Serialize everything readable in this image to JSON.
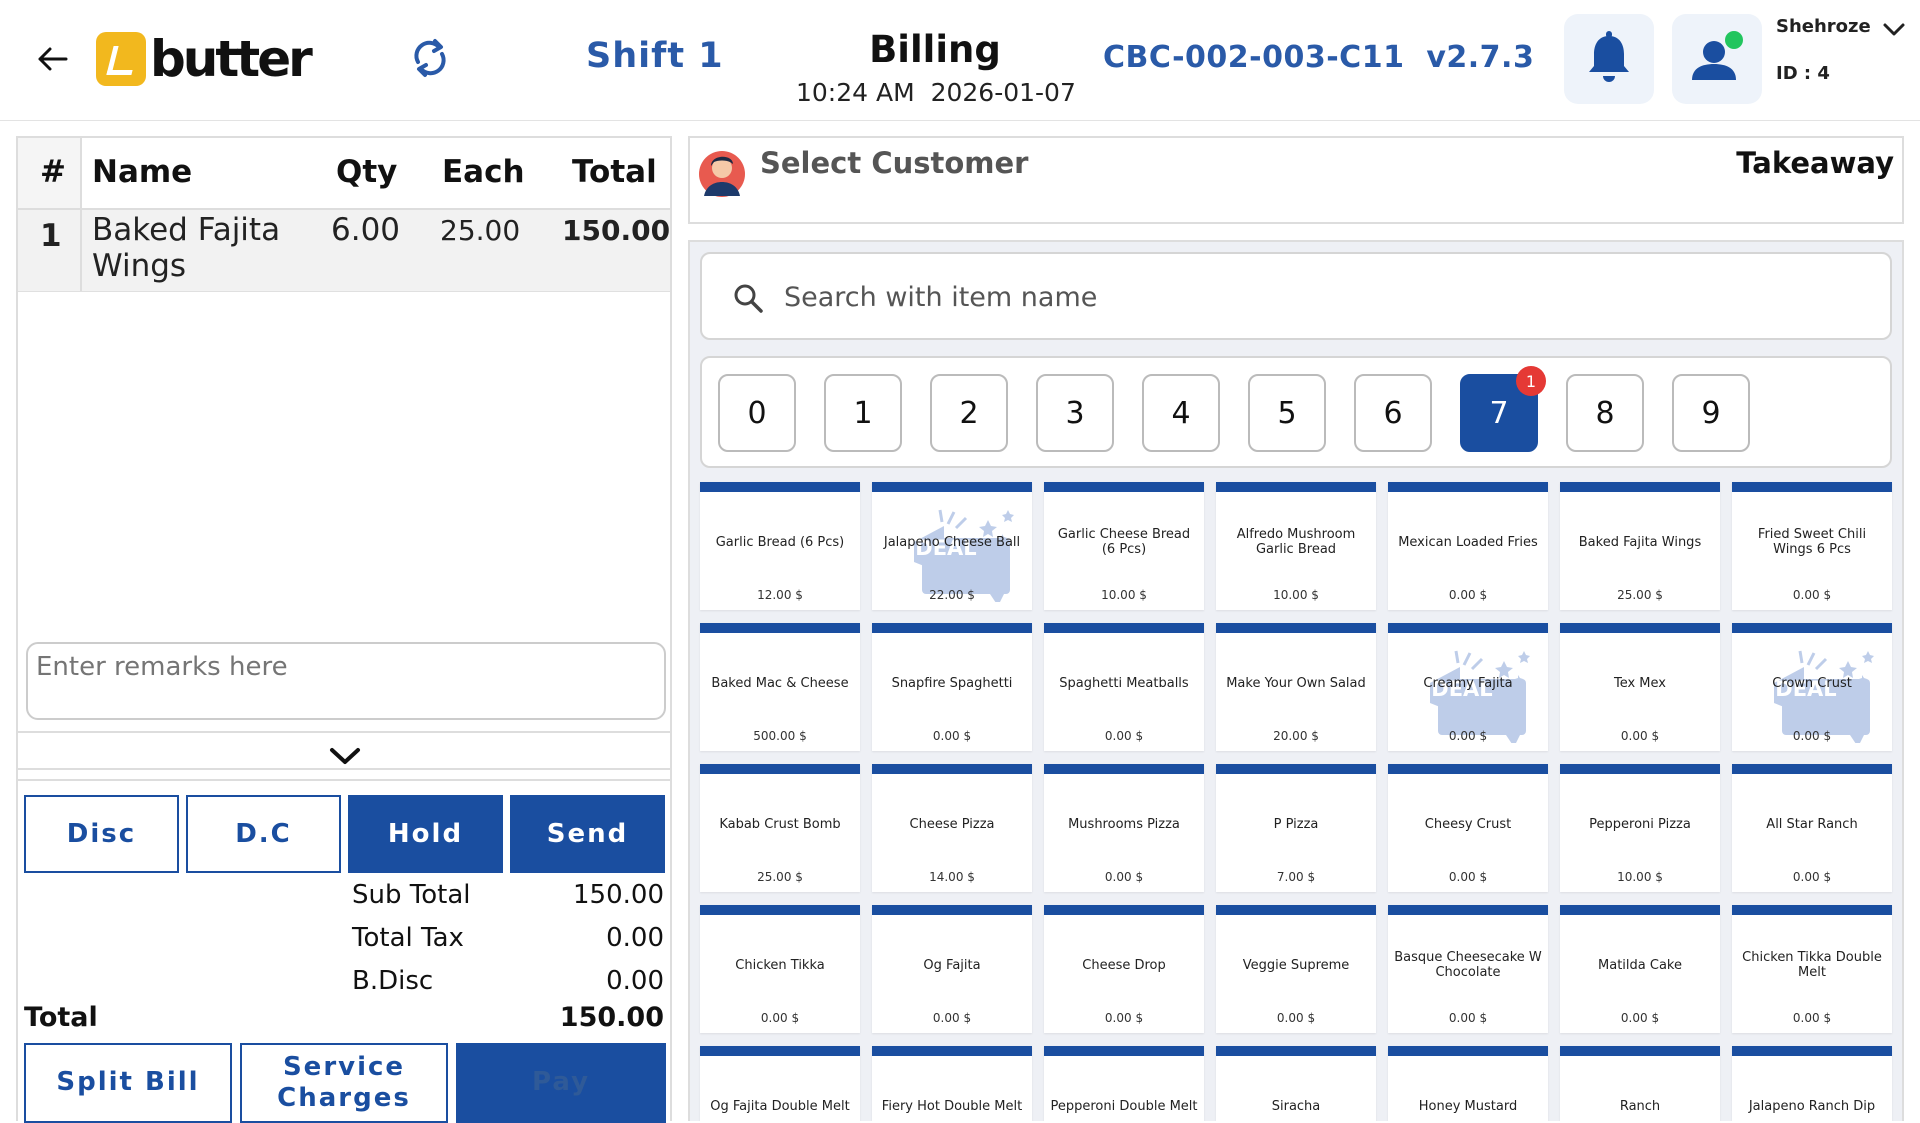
{
  "header": {
    "brand": "butter",
    "shift": "Shift 1",
    "title": "Billing",
    "time": "10:24 AM",
    "date": "2026-01-07",
    "device_id": "CBC-002-003-C11",
    "version": "v2.7.3",
    "user_name": "Shehroze",
    "user_id": "ID : 4",
    "accent_color": "#1a4ea0",
    "online_color": "#22c55e"
  },
  "order": {
    "columns": [
      "#",
      "Name",
      "Qty",
      "Each",
      "Total"
    ],
    "rows": [
      {
        "num": "1",
        "name": "Baked Fajita Wings",
        "qty": "6.00",
        "each": "25.00",
        "total": "150.00"
      }
    ],
    "remarks_placeholder": "Enter remarks here",
    "buttons": {
      "disc": "Disc",
      "dc": "D.C",
      "hold": "Hold",
      "send": "Send"
    },
    "summary": [
      {
        "label": "Sub Total",
        "value": "150.00"
      },
      {
        "label": "Total Tax",
        "value": "0.00"
      },
      {
        "label": "B.Disc",
        "value": "0.00"
      }
    ],
    "total_label": "Total",
    "total_value": "150.00",
    "bottom_buttons": {
      "split": "Split Bill",
      "service": "Service Charges",
      "pay": "Pay"
    }
  },
  "customer": {
    "label": "Select Customer",
    "order_type": "Takeaway"
  },
  "search": {
    "placeholder": "Search with item name"
  },
  "categories": {
    "items": [
      "0",
      "1",
      "2",
      "3",
      "4",
      "5",
      "6",
      "7",
      "8",
      "9"
    ],
    "selected": "7",
    "badge": "1"
  },
  "deal_label": "DEAL",
  "items": [
    {
      "name": "Garlic Bread (6 Pcs)",
      "price": "12.00 $",
      "deal": false
    },
    {
      "name": "Jalapeno Cheese Ball",
      "price": "22.00 $",
      "deal": true
    },
    {
      "name": "Garlic Cheese Bread (6 Pcs)",
      "price": "10.00 $",
      "deal": false
    },
    {
      "name": "Alfredo Mushroom Garlic Bread",
      "price": "10.00 $",
      "deal": false
    },
    {
      "name": "Mexican Loaded Fries",
      "price": "0.00 $",
      "deal": false
    },
    {
      "name": "Baked Fajita Wings",
      "price": "25.00 $",
      "deal": false
    },
    {
      "name": "Fried Sweet Chili Wings 6 Pcs",
      "price": "0.00 $",
      "deal": false
    },
    {
      "name": "Baked Mac & Cheese",
      "price": "500.00 $",
      "deal": false
    },
    {
      "name": "Snapfire Spaghetti",
      "price": "0.00 $",
      "deal": false
    },
    {
      "name": "Spaghetti Meatballs",
      "price": "0.00 $",
      "deal": false
    },
    {
      "name": "Make Your Own Salad",
      "price": "20.00 $",
      "deal": false
    },
    {
      "name": "Creamy Fajita",
      "price": "0.00 $",
      "deal": true
    },
    {
      "name": "Tex Mex",
      "price": "0.00 $",
      "deal": false
    },
    {
      "name": "Crown Crust",
      "price": "0.00 $",
      "deal": true
    },
    {
      "name": "Kabab Crust Bomb",
      "price": "25.00 $",
      "deal": false
    },
    {
      "name": "Cheese Pizza",
      "price": "14.00 $",
      "deal": false
    },
    {
      "name": "Mushrooms Pizza",
      "price": "0.00 $",
      "deal": false
    },
    {
      "name": "P Pizza",
      "price": "7.00 $",
      "deal": false
    },
    {
      "name": "Cheesy Crust",
      "price": "0.00 $",
      "deal": false
    },
    {
      "name": "Pepperoni Pizza",
      "price": "10.00 $",
      "deal": false
    },
    {
      "name": "All Star Ranch",
      "price": "0.00 $",
      "deal": false
    },
    {
      "name": "Chicken Tikka",
      "price": "0.00 $",
      "deal": false
    },
    {
      "name": "Og Fajita",
      "price": "0.00 $",
      "deal": false
    },
    {
      "name": "Cheese Drop",
      "price": "0.00 $",
      "deal": false
    },
    {
      "name": "Veggie Supreme",
      "price": "0.00 $",
      "deal": false
    },
    {
      "name": "Basque Cheesecake W Chocolate",
      "price": "0.00 $",
      "deal": false
    },
    {
      "name": "Matilda Cake",
      "price": "0.00 $",
      "deal": false
    },
    {
      "name": "Chicken Tikka Double Melt",
      "price": "0.00 $",
      "deal": false
    },
    {
      "name": "Og Fajita Double Melt",
      "price": "",
      "deal": false
    },
    {
      "name": "Fiery Hot Double Melt",
      "price": "",
      "deal": false
    },
    {
      "name": "Pepperoni Double Melt",
      "price": "",
      "deal": false
    },
    {
      "name": "Siracha",
      "price": "",
      "deal": false
    },
    {
      "name": "Honey Mustard",
      "price": "",
      "deal": false
    },
    {
      "name": "Ranch",
      "price": "",
      "deal": false
    },
    {
      "name": "Jalapeno Ranch Dip",
      "price": "",
      "deal": false
    }
  ]
}
